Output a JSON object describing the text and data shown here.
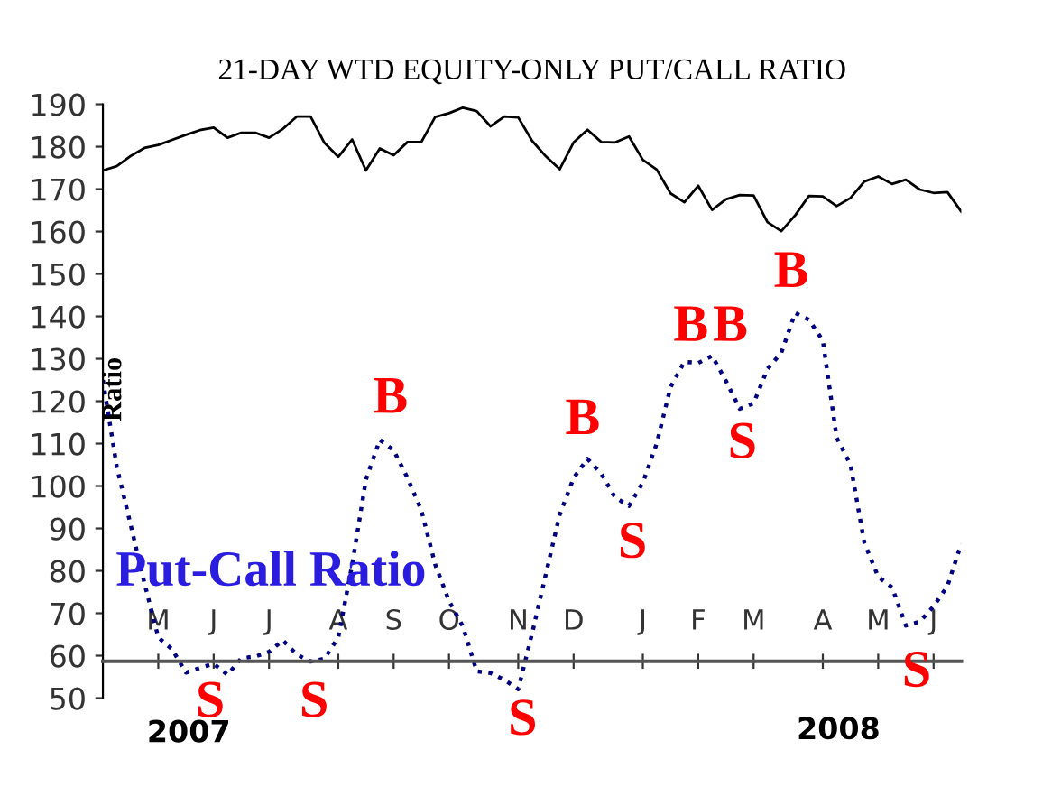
{
  "chart_data": {
    "type": "line",
    "title": "21-DAY WTD EQUITY-ONLY PUT/CALL RATIO",
    "ylabel": "Ratio",
    "categories": [
      null,
      null,
      null,
      null,
      "M",
      null,
      null,
      null,
      "J",
      null,
      null,
      null,
      "J",
      null,
      null,
      null,
      null,
      "A",
      null,
      null,
      null,
      "S",
      null,
      null,
      null,
      "O",
      null,
      null,
      null,
      null,
      "N",
      null,
      null,
      null,
      "D",
      null,
      null,
      null,
      null,
      "J",
      null,
      null,
      null,
      "F",
      null,
      null,
      null,
      "M",
      null,
      null,
      null,
      null,
      "A",
      null,
      null,
      null,
      "M",
      null,
      null,
      null,
      "J",
      null,
      null
    ],
    "ylim": [
      50,
      190
    ],
    "yticks": [
      50,
      60,
      70,
      80,
      90,
      100,
      110,
      120,
      130,
      140,
      150,
      160,
      170,
      180,
      190
    ],
    "grid": false,
    "legend": false,
    "marker": "none",
    "series": [
      {
        "color": "#000000",
        "line_style": "solid",
        "values": [
          174.4,
          175.4,
          177.8,
          179.7,
          180.4,
          181.6,
          182.8,
          183.9,
          184.5,
          182.1,
          183.3,
          183.3,
          182.1,
          184.2,
          187.1,
          187.1,
          180.9,
          177.6,
          181.7,
          174.4,
          179.6,
          178,
          181.1,
          181.1,
          187,
          187.9,
          189.2,
          188.4,
          184.8,
          187.1,
          186.9,
          181.4,
          177.7,
          174.7,
          181,
          184,
          181.1,
          181,
          182.4,
          176.9,
          174.6,
          169,
          166.9,
          170.8,
          165.1,
          167.6,
          168.6,
          168.5,
          162.2,
          160.1,
          163.8,
          168.4,
          168.3,
          166,
          167.9,
          171.8,
          173,
          171.2,
          172.2,
          169.9,
          169.1,
          169.3,
          164.7
        ]
      },
      {
        "name": "Put-Call Ratio",
        "color": "#000080",
        "line_style": "dotted",
        "values": [
          125,
          104.6,
          90.9,
          77.1,
          64.3,
          61.5,
          56,
          57.1,
          58.1,
          55.5,
          59.4,
          59.8,
          60.9,
          63.6,
          60.3,
          58.6,
          59.3,
          64.3,
          81.4,
          101.5,
          110.9,
          108.4,
          101.9,
          94.3,
          81.5,
          72.9,
          66.9,
          56.3,
          55.9,
          54.3,
          52.1,
          65.2,
          79.3,
          93.3,
          101.9,
          106.4,
          102.9,
          97.3,
          95.3,
          100.8,
          110,
          123.3,
          129.3,
          129,
          130.7,
          124.8,
          118.2,
          119.5,
          127.6,
          131.4,
          140.8,
          139.2,
          134.3,
          111.4,
          105,
          86.6,
          78.6,
          76.1,
          67.1,
          68,
          71.6,
          76.4,
          86.4
        ]
      }
    ],
    "annotations": [
      "S",
      "S",
      "B",
      "S",
      "B",
      "S",
      "B",
      "B",
      "S",
      "B",
      "S",
      "2007",
      "2008"
    ]
  }
}
